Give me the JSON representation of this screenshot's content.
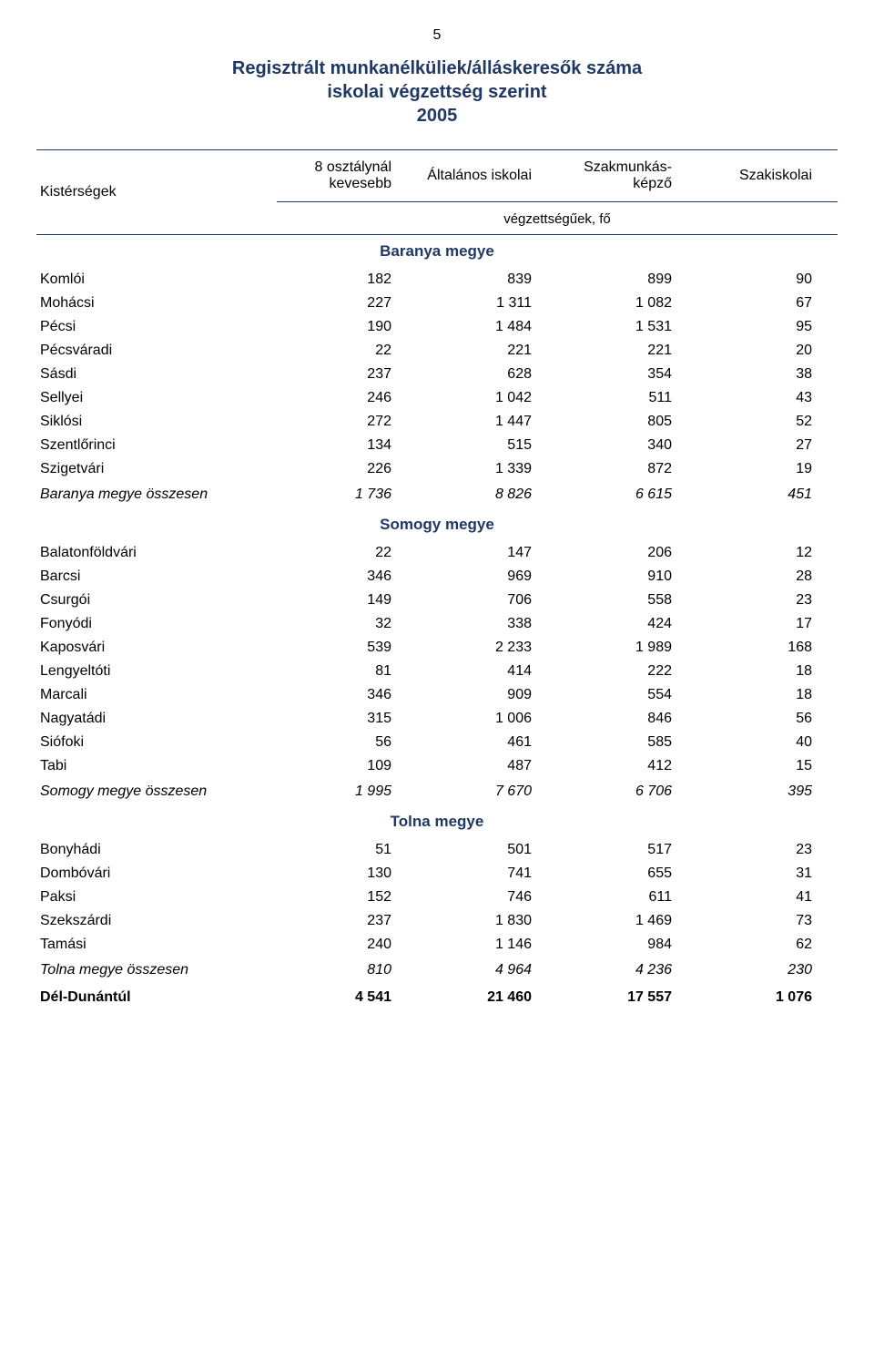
{
  "page_number": "5",
  "title_line1": "Regisztrált munkanélküliek/álláskeresők száma",
  "title_line2": "iskolai végzettség szerint",
  "title_line3": "2005",
  "header": {
    "col_region": "Kistérségek",
    "col1": "8 osztálynál kevesebb",
    "col2": "Általános iskolai",
    "col3": "Szakmunkás-képző",
    "col4": "Szakiskolai",
    "subhead": "végzettségűek, fő"
  },
  "sections": [
    {
      "name": "Baranya megye",
      "rows": [
        {
          "region": "Komlói",
          "c1": "182",
          "c2": "839",
          "c3": "899",
          "c4": "90"
        },
        {
          "region": "Mohácsi",
          "c1": "227",
          "c2": "1 311",
          "c3": "1 082",
          "c4": "67"
        },
        {
          "region": "Pécsi",
          "c1": "190",
          "c2": "1 484",
          "c3": "1 531",
          "c4": "95"
        },
        {
          "region": "Pécsváradi",
          "c1": "22",
          "c2": "221",
          "c3": "221",
          "c4": "20"
        },
        {
          "region": "Sásdi",
          "c1": "237",
          "c2": "628",
          "c3": "354",
          "c4": "38"
        },
        {
          "region": "Sellyei",
          "c1": "246",
          "c2": "1 042",
          "c3": "511",
          "c4": "43"
        },
        {
          "region": "Siklósi",
          "c1": "272",
          "c2": "1 447",
          "c3": "805",
          "c4": "52"
        },
        {
          "region": "Szentlőrinci",
          "c1": "134",
          "c2": "515",
          "c3": "340",
          "c4": "27"
        },
        {
          "region": "Szigetvári",
          "c1": "226",
          "c2": "1 339",
          "c3": "872",
          "c4": "19"
        }
      ],
      "summary": {
        "region": "Baranya megye összesen",
        "c1": "1 736",
        "c2": "8 826",
        "c3": "6 615",
        "c4": "451"
      }
    },
    {
      "name": "Somogy megye",
      "rows": [
        {
          "region": "Balatonföldvári",
          "c1": "22",
          "c2": "147",
          "c3": "206",
          "c4": "12"
        },
        {
          "region": "Barcsi",
          "c1": "346",
          "c2": "969",
          "c3": "910",
          "c4": "28"
        },
        {
          "region": "Csurgói",
          "c1": "149",
          "c2": "706",
          "c3": "558",
          "c4": "23"
        },
        {
          "region": "Fonyódi",
          "c1": "32",
          "c2": "338",
          "c3": "424",
          "c4": "17"
        },
        {
          "region": "Kaposvári",
          "c1": "539",
          "c2": "2 233",
          "c3": "1 989",
          "c4": "168"
        },
        {
          "region": "Lengyeltóti",
          "c1": "81",
          "c2": "414",
          "c3": "222",
          "c4": "18"
        },
        {
          "region": "Marcali",
          "c1": "346",
          "c2": "909",
          "c3": "554",
          "c4": "18"
        },
        {
          "region": "Nagyatádi",
          "c1": "315",
          "c2": "1 006",
          "c3": "846",
          "c4": "56"
        },
        {
          "region": "Siófoki",
          "c1": "56",
          "c2": "461",
          "c3": "585",
          "c4": "40"
        },
        {
          "region": "Tabi",
          "c1": "109",
          "c2": "487",
          "c3": "412",
          "c4": "15"
        }
      ],
      "summary": {
        "region": "Somogy megye összesen",
        "c1": "1 995",
        "c2": "7 670",
        "c3": "6 706",
        "c4": "395"
      }
    },
    {
      "name": "Tolna megye",
      "rows": [
        {
          "region": "Bonyhádi",
          "c1": "51",
          "c2": "501",
          "c3": "517",
          "c4": "23"
        },
        {
          "region": "Dombóvári",
          "c1": "130",
          "c2": "741",
          "c3": "655",
          "c4": "31"
        },
        {
          "region": "Paksi",
          "c1": "152",
          "c2": "746",
          "c3": "611",
          "c4": "41"
        },
        {
          "region": "Szekszárdi",
          "c1": "237",
          "c2": "1 830",
          "c3": "1 469",
          "c4": "73"
        },
        {
          "region": "Tamási",
          "c1": "240",
          "c2": "1 146",
          "c3": "984",
          "c4": "62"
        }
      ],
      "summary": {
        "region": "Tolna megye összesen",
        "c1": "810",
        "c2": "4 964",
        "c3": "4 236",
        "c4": "230"
      }
    }
  ],
  "grand_total": {
    "region": "Dél-Dunántúl",
    "c1": "4 541",
    "c2": "21 460",
    "c3": "17 557",
    "c4": "1 076"
  },
  "colors": {
    "heading": "#1f3864",
    "rule": "#1f3864",
    "text": "#000000",
    "background": "#ffffff"
  }
}
